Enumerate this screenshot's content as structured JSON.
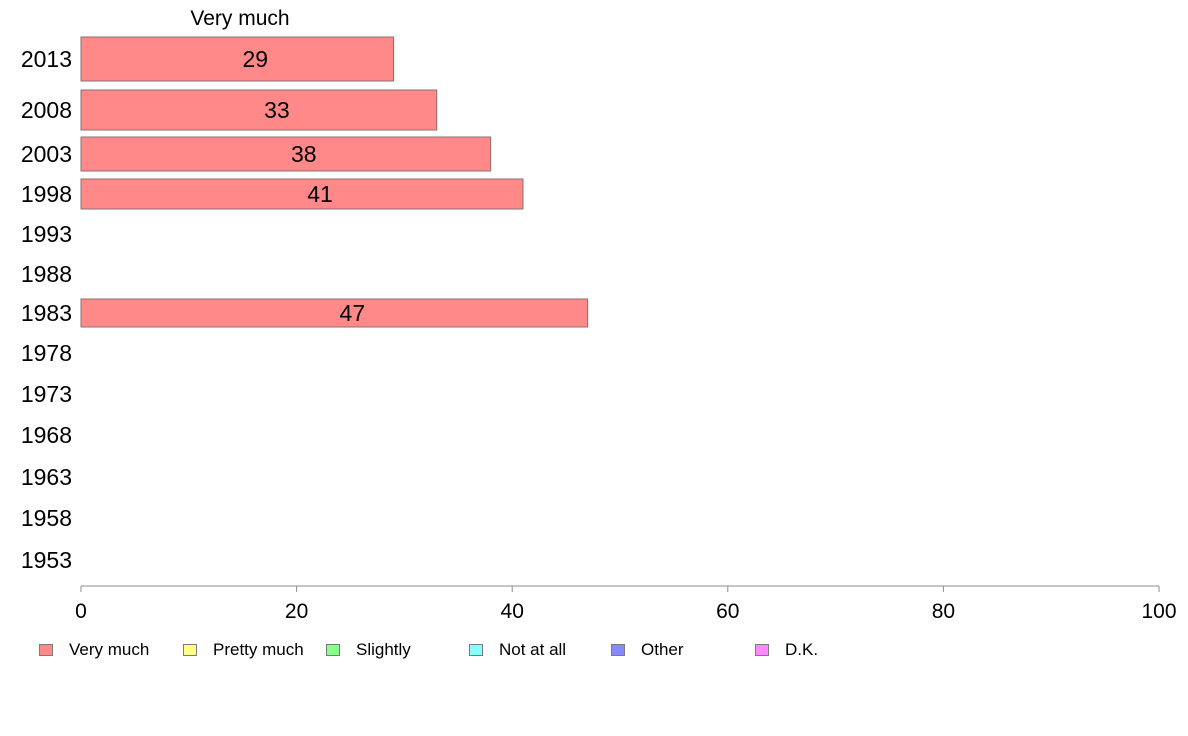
{
  "chart_data": {
    "type": "bar",
    "orientation": "horizontal",
    "title": "Very much",
    "categories": [
      "2013",
      "2008",
      "2003",
      "1998",
      "1993",
      "1988",
      "1983",
      "1978",
      "1973",
      "1968",
      "1963",
      "1958",
      "1953"
    ],
    "series": [
      {
        "name": "Very much",
        "color": "#ff8888",
        "values": [
          29,
          33,
          38,
          41,
          null,
          null,
          47,
          null,
          null,
          null,
          null,
          null,
          null
        ]
      }
    ],
    "xlim": [
      0,
      100
    ],
    "xticks": [
      "0",
      "20",
      "40",
      "60",
      "80",
      "100"
    ],
    "xlabel": "",
    "ylabel": "",
    "grid": false,
    "legend_position": "bottom",
    "legend": [
      {
        "label": "Very much",
        "color": "#ff8888"
      },
      {
        "label": "Pretty much",
        "color": "#ffff88"
      },
      {
        "label": "Slightly",
        "color": "#88ff88"
      },
      {
        "label": "Not at all",
        "color": "#88ffff"
      },
      {
        "label": "Other",
        "color": "#8888ff"
      },
      {
        "label": "D.K.",
        "color": "#ff88ff"
      }
    ]
  }
}
